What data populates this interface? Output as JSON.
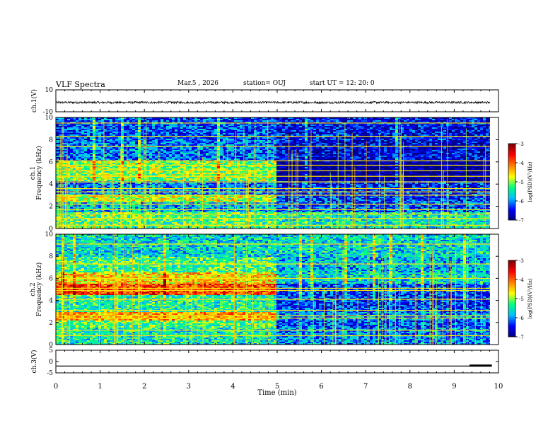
{
  "header": {
    "title": "VLF Spectra",
    "date": "Mar.5 , 2026",
    "station": "station= OUJ",
    "start_ut": "start UT = 12: 20: 0"
  },
  "colors": {
    "colormap": [
      "#00007f",
      "#0000ff",
      "#00bfff",
      "#00ff80",
      "#ffff00",
      "#ff7f00",
      "#ff0000",
      "#7f0000"
    ],
    "trace": "#000000"
  },
  "chart_data": [
    {
      "type": "line",
      "panel": "ch1-waveform",
      "ylabel": "ch.1(V)",
      "ylim": [
        -10,
        10
      ],
      "yticks": [
        "10",
        "-10"
      ],
      "series": [
        {
          "approx_level": -1.5,
          "noise_amplitude": 1.0
        }
      ]
    },
    {
      "type": "heatmap",
      "panel": "ch1-spectrogram",
      "ylabel": "ch.1 Frequency (kHz)",
      "ylim": [
        0,
        10
      ],
      "yticks": [
        "0",
        "2",
        "4",
        "6",
        "8",
        "10"
      ],
      "colorbar": {
        "label": "log(PSD)(V²/Hz)",
        "ticks": [
          "-3",
          "-4",
          "-5",
          "-6",
          "-7"
        ],
        "range": [
          -7,
          -3
        ]
      },
      "change_time_min": 5.0,
      "background": [
        {
          "fmin": 0,
          "fmax": 1.5,
          "before": -5.2,
          "after": -5.5
        },
        {
          "fmin": 1.5,
          "fmax": 2.3,
          "before": -5.8,
          "after": -6.2
        },
        {
          "fmin": 2.3,
          "fmax": 3.0,
          "before": -4.8,
          "after": -6.3
        },
        {
          "fmin": 3.0,
          "fmax": 4.3,
          "before": -6.0,
          "after": -6.4
        },
        {
          "fmin": 4.3,
          "fmax": 6.0,
          "before": -5.0,
          "after": -7.0
        },
        {
          "fmin": 6.0,
          "fmax": 8.0,
          "before": -6.1,
          "after": -6.6
        },
        {
          "fmin": 8.0,
          "fmax": 10.0,
          "before": -6.2,
          "after": -6.5
        }
      ],
      "tones_khz": [
        0.3,
        0.9,
        1.3,
        1.7,
        2.2,
        3.0,
        3.3,
        3.6,
        4.2,
        4.7,
        5.2,
        5.7,
        6.1,
        7.4,
        8.3,
        9.5
      ]
    },
    {
      "type": "heatmap",
      "panel": "ch2-spectrogram",
      "ylabel": "ch.2 Frequency (kHz)",
      "ylim": [
        0,
        10
      ],
      "yticks": [
        "0",
        "2",
        "4",
        "6",
        "8",
        "10"
      ],
      "colorbar": {
        "label": "log(PSD)(V²/Hz)",
        "ticks": [
          "-3",
          "-4",
          "-5",
          "-6",
          "-7"
        ],
        "range": [
          -7,
          -3
        ]
      },
      "change_time_min": 5.0,
      "background": [
        {
          "fmin": 0,
          "fmax": 1.5,
          "before": -5.5,
          "after": -6.0
        },
        {
          "fmin": 1.5,
          "fmax": 2.2,
          "before": -5.2,
          "after": -6.2
        },
        {
          "fmin": 2.2,
          "fmax": 3.0,
          "before": -4.3,
          "after": -6.0
        },
        {
          "fmin": 3.0,
          "fmax": 4.5,
          "before": -5.4,
          "after": -6.3
        },
        {
          "fmin": 4.5,
          "fmax": 5.5,
          "before": -3.8,
          "after": -6.3
        },
        {
          "fmin": 5.5,
          "fmax": 6.6,
          "before": -4.5,
          "after": -5.6
        },
        {
          "fmin": 6.6,
          "fmax": 8.0,
          "before": -5.3,
          "after": -5.8
        },
        {
          "fmin": 8.0,
          "fmax": 10.0,
          "before": -5.6,
          "after": -5.6
        }
      ],
      "tones_khz": [
        0.8,
        1.3,
        2.4,
        2.6,
        3.1,
        4.1,
        4.9,
        5.1,
        6.0,
        7.3,
        9.1
      ]
    },
    {
      "type": "line",
      "panel": "ch3-waveform",
      "ylabel": "ch.3(V)",
      "ylim": [
        -5,
        5
      ],
      "yticks": [
        "5",
        "0",
        "-5"
      ],
      "series": [
        {
          "x": [
            0,
            9.35,
            9.35,
            9.85
          ],
          "y": [
            -2,
            -2,
            -1.8,
            -1.8
          ]
        }
      ]
    }
  ],
  "xaxis": {
    "label": "Time (min)",
    "range": [
      0,
      10
    ],
    "ticks": [
      "0",
      "1",
      "2",
      "3",
      "4",
      "5",
      "6",
      "7",
      "8",
      "9",
      "10"
    ]
  }
}
